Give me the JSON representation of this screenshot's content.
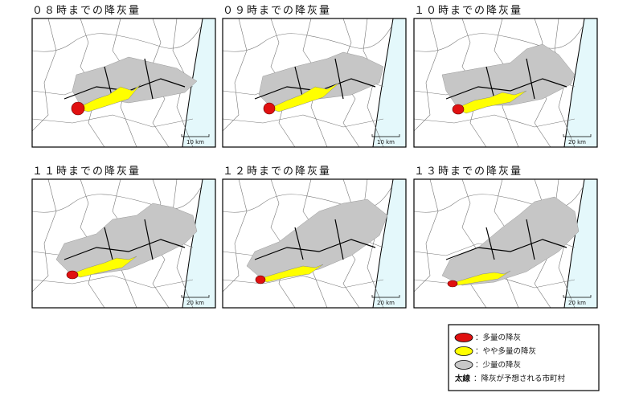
{
  "panels": [
    {
      "title": "０８時までの降灰量",
      "scale": "10 km"
    },
    {
      "title": "０９時までの降灰量",
      "scale": "10 km"
    },
    {
      "title": "１０時までの降灰量",
      "scale": "20 km"
    },
    {
      "title": "１１時までの降灰量",
      "scale": "20 km"
    },
    {
      "title": "１２時までの降灰量",
      "scale": "20 km"
    },
    {
      "title": "１３時までの降灰量",
      "scale": "20 km"
    }
  ],
  "legend": {
    "items": [
      "：多量の降灰",
      "：やや多量の降灰",
      "：少量の降灰"
    ],
    "bold_label": "太線",
    "bold_text": "：降灰が予想される市町村"
  }
}
